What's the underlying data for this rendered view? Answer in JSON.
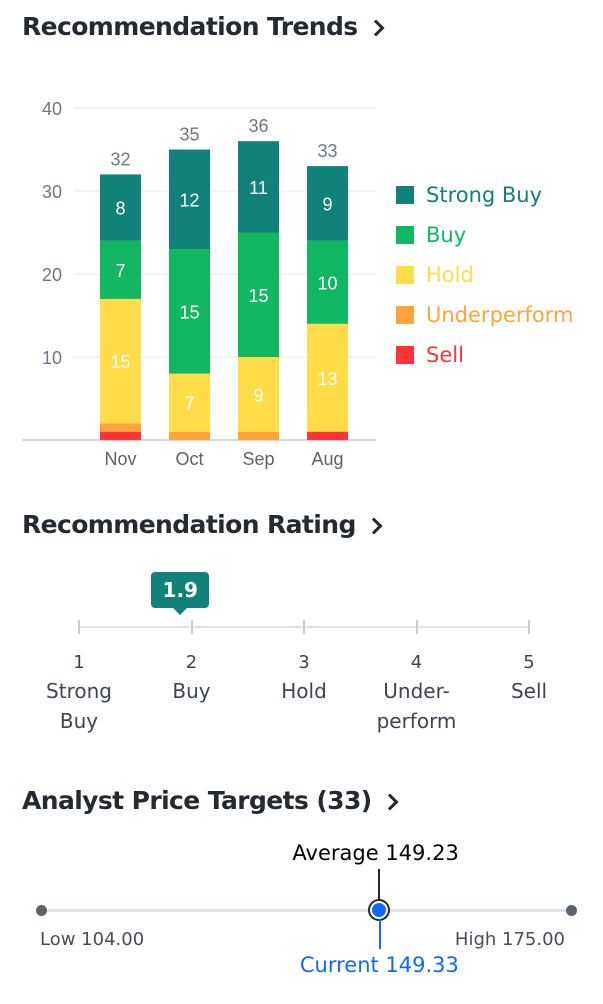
{
  "trends": {
    "title": "Recommendation Trends",
    "legend": [
      {
        "label": "Strong Buy",
        "color": "#11827a"
      },
      {
        "label": "Buy",
        "color": "#12b762"
      },
      {
        "label": "Hold",
        "color": "#ffdc48"
      },
      {
        "label": "Underperform",
        "color": "#ffa33a"
      },
      {
        "label": "Sell",
        "color": "#ff333a"
      }
    ]
  },
  "chart_data": {
    "type": "bar",
    "stacked": true,
    "categories": [
      "Nov",
      "Oct",
      "Sep",
      "Aug"
    ],
    "series": [
      {
        "name": "Sell",
        "color": "#ff333a",
        "values": [
          1,
          0,
          0,
          1
        ]
      },
      {
        "name": "Underperform",
        "color": "#ffa33a",
        "values": [
          1,
          1,
          1,
          0
        ]
      },
      {
        "name": "Hold",
        "color": "#ffdc48",
        "values": [
          15,
          7,
          9,
          13
        ]
      },
      {
        "name": "Buy",
        "color": "#12b762",
        "values": [
          7,
          15,
          15,
          10
        ]
      },
      {
        "name": "Strong Buy",
        "color": "#11827a",
        "values": [
          8,
          12,
          11,
          9
        ]
      }
    ],
    "totals": [
      32,
      35,
      36,
      33
    ],
    "ylim": [
      0,
      40
    ],
    "yticks": [
      10,
      20,
      30,
      40
    ],
    "grid": true,
    "legend_position": "right"
  },
  "rating": {
    "title": "Recommendation Rating",
    "value": 1.9,
    "value_label": "1.9",
    "scale": [
      {
        "num": "1",
        "lines": [
          "Strong",
          "Buy"
        ]
      },
      {
        "num": "2",
        "lines": [
          "Buy"
        ]
      },
      {
        "num": "3",
        "lines": [
          "Hold"
        ]
      },
      {
        "num": "4",
        "lines": [
          "Under-",
          "perform"
        ]
      },
      {
        "num": "5",
        "lines": [
          "Sell"
        ]
      }
    ]
  },
  "price_targets": {
    "title": "Analyst Price Targets (33)",
    "low": 104.0,
    "high": 175.0,
    "average": 149.23,
    "current": 149.33,
    "low_label": "Low 104.00",
    "high_label": "High 175.00",
    "average_label": "Average 149.23",
    "current_label": "Current 149.33"
  }
}
